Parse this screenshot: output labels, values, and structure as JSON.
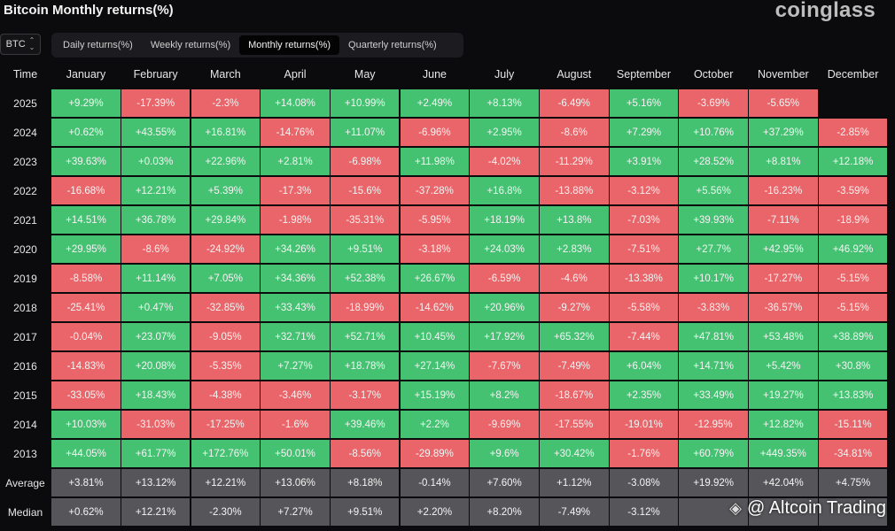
{
  "header": {
    "title": "Bitcoin Monthly returns(%)",
    "brand": "coinglass"
  },
  "asset_selector": {
    "value": "BTC",
    "icon": "chevron-up-down-icon"
  },
  "tabs": [
    {
      "label": "Daily returns(%)",
      "active": false
    },
    {
      "label": "Weekly returns(%)",
      "active": false
    },
    {
      "label": "Monthly returns(%)",
      "active": true
    },
    {
      "label": "Quarterly returns(%)",
      "active": false
    }
  ],
  "table": {
    "corner_label": "Time",
    "months": [
      "January",
      "February",
      "March",
      "April",
      "May",
      "June",
      "July",
      "August",
      "September",
      "October",
      "November",
      "December"
    ],
    "rows": [
      {
        "label": "2025",
        "values": [
          "+9.29%",
          "-17.39%",
          "-2.3%",
          "+14.08%",
          "+10.99%",
          "+2.49%",
          "+8.13%",
          "-6.49%",
          "+5.16%",
          "-3.69%",
          "-5.65%",
          ""
        ]
      },
      {
        "label": "2024",
        "values": [
          "+0.62%",
          "+43.55%",
          "+16.81%",
          "-14.76%",
          "+11.07%",
          "-6.96%",
          "+2.95%",
          "-8.6%",
          "+7.29%",
          "+10.76%",
          "+37.29%",
          "-2.85%"
        ]
      },
      {
        "label": "2023",
        "values": [
          "+39.63%",
          "+0.03%",
          "+22.96%",
          "+2.81%",
          "-6.98%",
          "+11.98%",
          "-4.02%",
          "-11.29%",
          "+3.91%",
          "+28.52%",
          "+8.81%",
          "+12.18%"
        ]
      },
      {
        "label": "2022",
        "values": [
          "-16.68%",
          "+12.21%",
          "+5.39%",
          "-17.3%",
          "-15.6%",
          "-37.28%",
          "+16.8%",
          "-13.88%",
          "-3.12%",
          "+5.56%",
          "-16.23%",
          "-3.59%"
        ]
      },
      {
        "label": "2021",
        "values": [
          "+14.51%",
          "+36.78%",
          "+29.84%",
          "-1.98%",
          "-35.31%",
          "-5.95%",
          "+18.19%",
          "+13.8%",
          "-7.03%",
          "+39.93%",
          "-7.11%",
          "-18.9%"
        ]
      },
      {
        "label": "2020",
        "values": [
          "+29.95%",
          "-8.6%",
          "-24.92%",
          "+34.26%",
          "+9.51%",
          "-3.18%",
          "+24.03%",
          "+2.83%",
          "-7.51%",
          "+27.7%",
          "+42.95%",
          "+46.92%"
        ]
      },
      {
        "label": "2019",
        "values": [
          "-8.58%",
          "+11.14%",
          "+7.05%",
          "+34.36%",
          "+52.38%",
          "+26.67%",
          "-6.59%",
          "-4.6%",
          "-13.38%",
          "+10.17%",
          "-17.27%",
          "-5.15%"
        ]
      },
      {
        "label": "2018",
        "values": [
          "-25.41%",
          "+0.47%",
          "-32.85%",
          "+33.43%",
          "-18.99%",
          "-14.62%",
          "+20.96%",
          "-9.27%",
          "-5.58%",
          "-3.83%",
          "-36.57%",
          "-5.15%"
        ]
      },
      {
        "label": "2017",
        "values": [
          "-0.04%",
          "+23.07%",
          "-9.05%",
          "+32.71%",
          "+52.71%",
          "+10.45%",
          "+17.92%",
          "+65.32%",
          "-7.44%",
          "+47.81%",
          "+53.48%",
          "+38.89%"
        ]
      },
      {
        "label": "2016",
        "values": [
          "-14.83%",
          "+20.08%",
          "-5.35%",
          "+7.27%",
          "+18.78%",
          "+27.14%",
          "-7.67%",
          "-7.49%",
          "+6.04%",
          "+14.71%",
          "+5.42%",
          "+30.8%"
        ]
      },
      {
        "label": "2015",
        "values": [
          "-33.05%",
          "+18.43%",
          "-4.38%",
          "-3.46%",
          "-3.17%",
          "+15.19%",
          "+8.2%",
          "-18.67%",
          "+2.35%",
          "+33.49%",
          "+19.27%",
          "+13.83%"
        ]
      },
      {
        "label": "2014",
        "values": [
          "+10.03%",
          "-31.03%",
          "-17.25%",
          "-1.6%",
          "+39.46%",
          "+2.2%",
          "-9.69%",
          "-17.55%",
          "-19.01%",
          "-12.95%",
          "+12.82%",
          "-15.11%"
        ]
      },
      {
        "label": "2013",
        "values": [
          "+44.05%",
          "+61.77%",
          "+172.76%",
          "+50.01%",
          "-8.56%",
          "-29.89%",
          "+9.6%",
          "+30.42%",
          "-1.76%",
          "+60.79%",
          "+449.35%",
          "-34.81%"
        ]
      }
    ],
    "stats": [
      {
        "label": "Average",
        "values": [
          "+3.81%",
          "+13.12%",
          "+12.21%",
          "+13.06%",
          "+8.18%",
          "-0.14%",
          "+7.60%",
          "+1.12%",
          "-3.08%",
          "+19.92%",
          "+42.04%",
          "+4.75%"
        ]
      },
      {
        "label": "Median",
        "values": [
          "+0.62%",
          "+12.21%",
          "-2.30%",
          "+7.27%",
          "+9.51%",
          "+2.20%",
          "+8.20%",
          "-7.49%",
          "-3.12%",
          "",
          "",
          ""
        ]
      }
    ]
  },
  "colors": {
    "positive": "#44c272",
    "negative": "#ea6569",
    "stat": "#56565a"
  },
  "watermark": {
    "text": "@ Altcoin Trading",
    "icon": "diamond-logo-icon"
  }
}
